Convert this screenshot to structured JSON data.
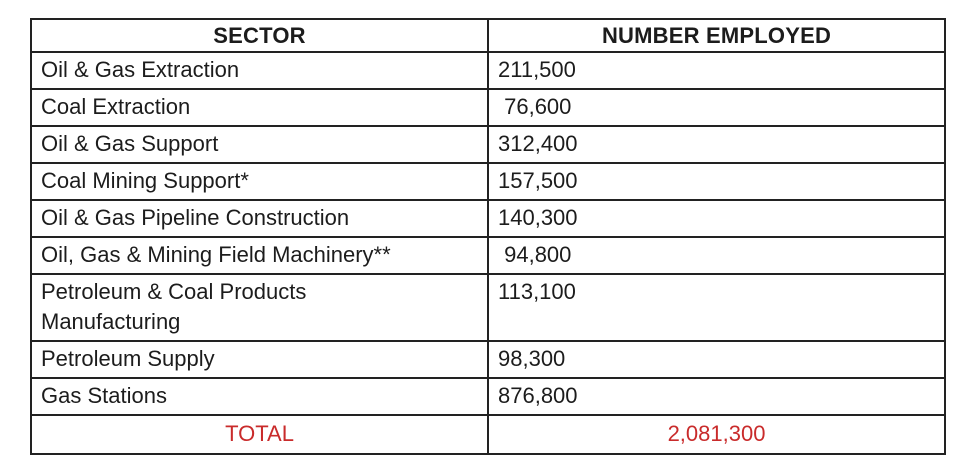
{
  "table": {
    "headers": {
      "sector": "SECTOR",
      "employed": "NUMBER EMPLOYED"
    },
    "rows": [
      {
        "sector": "Oil & Gas Extraction",
        "employed": "211,500"
      },
      {
        "sector": "Coal Extraction",
        "employed": " 76,600"
      },
      {
        "sector": "Oil & Gas Support",
        "employed": "312,400"
      },
      {
        "sector": "Coal Mining Support*",
        "employed": "157,500"
      },
      {
        "sector": "Oil & Gas Pipeline Construction",
        "employed": "140,300"
      },
      {
        "sector": "Oil, Gas & Mining Field Machinery**",
        "employed": " 94,800"
      },
      {
        "sector": "Petroleum & Coal Products\nManufacturing",
        "employed": "113,100"
      },
      {
        "sector": "Petroleum Supply",
        "employed": "98,300"
      },
      {
        "sector": "Gas Stations",
        "employed": "876,800"
      }
    ],
    "total": {
      "label": "TOTAL",
      "value": "2,081,300",
      "color": "#c92b2b"
    }
  }
}
